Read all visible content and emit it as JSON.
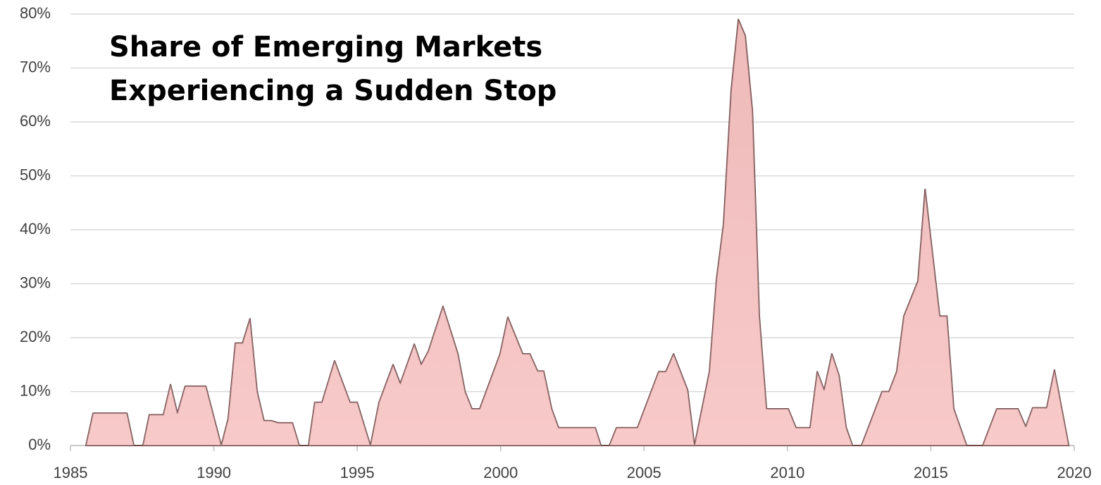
{
  "chart_data": {
    "type": "area",
    "title": [
      "Share of Emerging Markets",
      "Experiencing a Sudden Stop"
    ],
    "x": [
      1985.54,
      1985.79,
      1986.97,
      1987.21,
      1987.53,
      1987.75,
      1988.24,
      1988.49,
      1988.73,
      1989.0,
      1989.72,
      1990.26,
      1990.5,
      1990.75,
      1991.0,
      1991.26,
      1991.51,
      1991.75,
      1992.0,
      1992.25,
      1992.74,
      1992.98,
      1993.3,
      1993.52,
      1993.77,
      1994.21,
      1994.75,
      1995.0,
      1995.46,
      1995.76,
      1996.25,
      1996.5,
      1996.99,
      1997.23,
      1997.48,
      1997.99,
      1998.51,
      1998.76,
      1999.0,
      1999.27,
      1999.98,
      2000.25,
      2000.77,
      2001.02,
      2001.29,
      2001.5,
      2001.78,
      2002.02,
      2003.3,
      2003.5,
      2003.79,
      2004.04,
      2004.77,
      2005.51,
      2005.76,
      2006.03,
      2006.52,
      2006.76,
      2007.28,
      2007.53,
      2007.77,
      2008.04,
      2008.29,
      2008.53,
      2008.78,
      2009.02,
      2009.27,
      2010.03,
      2010.3,
      2010.79,
      2011.04,
      2011.28,
      2011.55,
      2011.8,
      2012.05,
      2012.27,
      2012.58,
      2013.3,
      2013.54,
      2013.81,
      2014.06,
      2014.55,
      2014.8,
      2015.31,
      2015.56,
      2015.8,
      2016.25,
      2016.81,
      2017.3,
      2018.04,
      2018.31,
      2018.55,
      2019.04,
      2019.31,
      2019.81
    ],
    "values": [
      0,
      6,
      6,
      0,
      0,
      5.7,
      5.7,
      11.3,
      6,
      11,
      11,
      0,
      5,
      19,
      19,
      23.5,
      10,
      4.6,
      4.6,
      4.2,
      4.2,
      0,
      0,
      8,
      8,
      15.7,
      8,
      8,
      0,
      8,
      15,
      11.5,
      18.8,
      15,
      17.5,
      25.8,
      17,
      10,
      6.8,
      6.8,
      17,
      23.8,
      17,
      17,
      13.8,
      13.8,
      6.8,
      3.3,
      3.3,
      0,
      0,
      3.3,
      3.3,
      13.7,
      13.7,
      17,
      10.3,
      0,
      13.7,
      31,
      41,
      66,
      79,
      76,
      62,
      24,
      6.8,
      6.8,
      3.3,
      3.3,
      13.7,
      10.3,
      17,
      13,
      3.3,
      0,
      0,
      10,
      10,
      13.7,
      24,
      30.5,
      47.5,
      24,
      24,
      6.8,
      0,
      0,
      6.8,
      6.8,
      3.5,
      7,
      7,
      14,
      0
    ],
    "color": "#f5c4c4",
    "xlim": [
      1985,
      2020
    ],
    "xticks": [
      1985,
      1990,
      1995,
      2000,
      2005,
      2010,
      2015,
      2020
    ],
    "ylim": [
      0,
      80
    ],
    "yticks": [
      {
        "value": 0,
        "label": "0%"
      },
      {
        "value": 10,
        "label": "10%"
      },
      {
        "value": 20,
        "label": "20%"
      },
      {
        "value": 30,
        "label": "30%"
      },
      {
        "value": 40,
        "label": "40%"
      },
      {
        "value": 50,
        "label": "50%"
      },
      {
        "value": 60,
        "label": "60%"
      },
      {
        "value": 70,
        "label": "70%"
      },
      {
        "value": 80,
        "label": "80%"
      }
    ],
    "grid": true
  }
}
